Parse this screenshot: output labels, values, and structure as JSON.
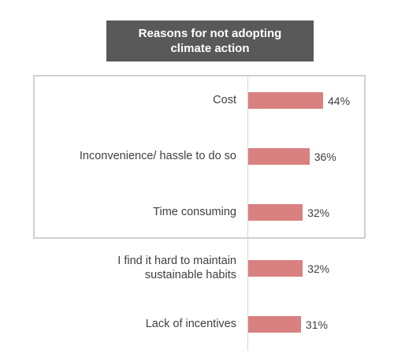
{
  "chart_data": {
    "type": "bar",
    "orientation": "horizontal",
    "title_lines": [
      "Reasons for not adopting",
      "climate action"
    ],
    "categories": [
      [
        "Cost"
      ],
      [
        "Inconvenience/ hassle to do so"
      ],
      [
        "Time consuming"
      ],
      [
        "I find it hard to maintain",
        "sustainable habits"
      ],
      [
        "Lack of incentives"
      ]
    ],
    "values": [
      44,
      36,
      32,
      32,
      31
    ],
    "value_labels": [
      "44%",
      "36%",
      "32%",
      "32%",
      "31%"
    ],
    "unit": "%",
    "xlim": [
      0,
      100
    ],
    "highlighted_categories": 3,
    "grid": false,
    "legend": "none"
  },
  "colors": {
    "bar": "#d98080",
    "title_background": "#595959",
    "title_text": "#ffffff",
    "label_text": "#404040",
    "frame": "#d0d0d0"
  }
}
